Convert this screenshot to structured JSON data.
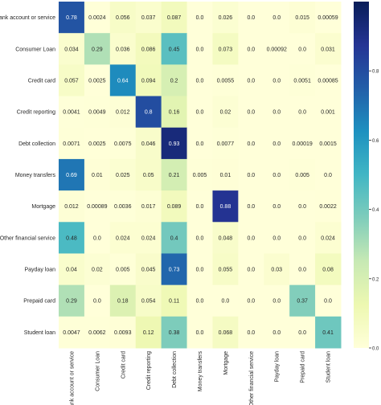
{
  "chart_data": {
    "type": "heatmap",
    "title": "",
    "xlabel": "",
    "ylabel": "",
    "rows": [
      "Bank account or service",
      "Consumer Loan",
      "Credit card",
      "Credit reporting",
      "Debt collection",
      "Money transfers",
      "Mortgage",
      "Other financial service",
      "Payday loan",
      "Prepaid card",
      "Student loan"
    ],
    "columns": [
      "Bank account or service",
      "Consumer Loan",
      "Credit card",
      "Credit reporting",
      "Debt collection",
      "Money transfers",
      "Mortgage",
      "Other financial service",
      "Payday loan",
      "Prepaid card",
      "Student loan"
    ],
    "values": [
      [
        0.78,
        0.0024,
        0.056,
        0.037,
        0.087,
        0.0,
        0.026,
        0.0,
        0.0,
        0.015,
        0.00059
      ],
      [
        0.034,
        0.29,
        0.036,
        0.086,
        0.45,
        0.0,
        0.073,
        0.0,
        0.00092,
        0.0,
        0.031
      ],
      [
        0.057,
        0.0025,
        0.64,
        0.094,
        0.2,
        0.0,
        0.0055,
        0.0,
        0.0,
        0.0051,
        0.00085
      ],
      [
        0.0041,
        0.0049,
        0.012,
        0.8,
        0.16,
        0.0,
        0.02,
        0.0,
        0.0,
        0.0,
        0.001
      ],
      [
        0.0071,
        0.0025,
        0.0075,
        0.046,
        0.93,
        0.0,
        0.0077,
        0.0,
        0.0,
        0.00019,
        0.0015
      ],
      [
        0.69,
        0.01,
        0.025,
        0.05,
        0.21,
        0.005,
        0.01,
        0.0,
        0.0,
        0.005,
        0.0
      ],
      [
        0.012,
        0.00089,
        0.0036,
        0.017,
        0.089,
        0.0,
        0.88,
        0.0,
        0.0,
        0.0,
        0.0022
      ],
      [
        0.48,
        0.0,
        0.024,
        0.024,
        0.4,
        0.0,
        0.048,
        0.0,
        0.0,
        0.0,
        0.024
      ],
      [
        0.04,
        0.02,
        0.005,
        0.045,
        0.73,
        0.0,
        0.055,
        0.0,
        0.03,
        0.0,
        0.08
      ],
      [
        0.29,
        0.0,
        0.18,
        0.054,
        0.11,
        0.0,
        0.0,
        0.0,
        0.0,
        0.37,
        0.0
      ],
      [
        0.0047,
        0.0062,
        0.0093,
        0.12,
        0.38,
        0.0,
        0.068,
        0.0,
        0.0,
        0.0,
        0.41
      ]
    ],
    "labels": [
      [
        "0.78",
        "0.0024",
        "0.056",
        "0.037",
        "0.087",
        "0.0",
        "0.026",
        "0.0",
        "0.0",
        "0.015",
        "0.00059"
      ],
      [
        "0.034",
        "0.29",
        "0.036",
        "0.086",
        "0.45",
        "0.0",
        "0.073",
        "0.0",
        "0.00092",
        "0.0",
        "0.031"
      ],
      [
        "0.057",
        "0.0025",
        "0.64",
        "0.094",
        "0.2",
        "0.0",
        "0.0055",
        "0.0",
        "0.0",
        "0.0051",
        "0.00085"
      ],
      [
        "0.0041",
        "0.0049",
        "0.012",
        "0.8",
        "0.16",
        "0.0",
        "0.02",
        "0.0",
        "0.0",
        "0.0",
        "0.001"
      ],
      [
        "0.0071",
        "0.0025",
        "0.0075",
        "0.046",
        "0.93",
        "0.0",
        "0.0077",
        "0.0",
        "0.0",
        "0.00019",
        "0.0015"
      ],
      [
        "0.69",
        "0.01",
        "0.025",
        "0.05",
        "0.21",
        "0.005",
        "0.01",
        "0.0",
        "0.0",
        "0.005",
        "0.0"
      ],
      [
        "0.012",
        "0.00089",
        "0.0036",
        "0.017",
        "0.089",
        "0.0",
        "0.88",
        "0.0",
        "0.0",
        "0.0",
        "0.0022"
      ],
      [
        "0.48",
        "0.0",
        "0.024",
        "0.024",
        "0.4",
        "0.0",
        "0.048",
        "0.0",
        "0.0",
        "0.0",
        "0.024"
      ],
      [
        "0.04",
        "0.02",
        "0.005",
        "0.045",
        "0.73",
        "0.0",
        "0.055",
        "0.0",
        "0.03",
        "0.0",
        "0.08"
      ],
      [
        "0.29",
        "0.0",
        "0.18",
        "0.054",
        "0.11",
        "0.0",
        "0.0",
        "0.0",
        "0.0",
        "0.37",
        "0.0"
      ],
      [
        "0.0047",
        "0.0062",
        "0.0093",
        "0.12",
        "0.38",
        "0.0",
        "0.068",
        "0.0",
        "0.0",
        "0.0",
        "0.41"
      ]
    ],
    "colorscale": "YlGnBu",
    "colorscale_stops": [
      "#ffffd9",
      "#edf8b1",
      "#c7e9b4",
      "#7fcdbb",
      "#41b6c4",
      "#1d91c0",
      "#225ea8",
      "#253494",
      "#081d58"
    ],
    "colorbar": {
      "range": [
        0,
        1
      ],
      "tick_values": [
        0,
        0.2,
        0.4,
        0.6,
        0.8
      ],
      "tick_labels": [
        "0.0",
        "0.2",
        "0.4",
        "0.6",
        "0.8"
      ]
    },
    "grid": false
  }
}
